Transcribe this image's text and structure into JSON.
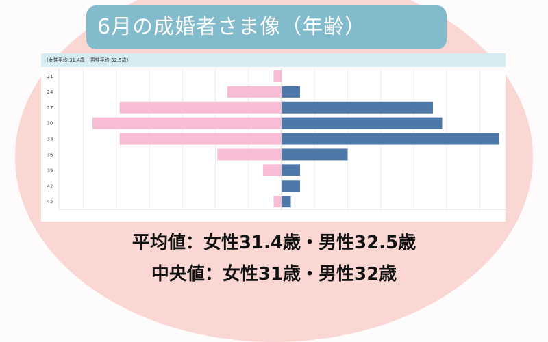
{
  "title": "6月の成婚者さま像（年齢）",
  "chart_header": {
    "female_avg": "(女性平均:31.4歳",
    "male_avg": "男性平均:32.5歳)"
  },
  "summary": {
    "line1": "平均値：女性31.4歳・男性32.5歳",
    "line2": "中央値：女性31歳・男性32歳"
  },
  "colors": {
    "female": "#f8bcd4",
    "male": "#4e78a8",
    "oval": "#fad7d3",
    "title_bg": "#82bccc"
  },
  "chart_data": {
    "type": "bar",
    "orientation": "horizontal-diverging",
    "categories": [
      "21",
      "24",
      "27",
      "30",
      "33",
      "36",
      "39",
      "42",
      "45"
    ],
    "series": [
      {
        "values": [
          1.2,
          8.2,
          24.5,
          28.6,
          24.5,
          9.7,
          2.8,
          0.0,
          1.2
        ]
      },
      {
        "values": [
          0.0,
          2.8,
          22.9,
          24.3,
          32.9,
          10.0,
          2.8,
          2.8,
          1.4
        ]
      }
    ],
    "x_ticks_left": [
      "30%",
      "25%",
      "20%",
      "15%",
      "10%",
      "5%",
      "0%"
    ],
    "x_ticks_right": [
      "5%",
      "10%",
      "15%",
      "20%",
      "25%",
      "30%"
    ],
    "xlim": [
      0,
      30
    ],
    "grid": true
  }
}
